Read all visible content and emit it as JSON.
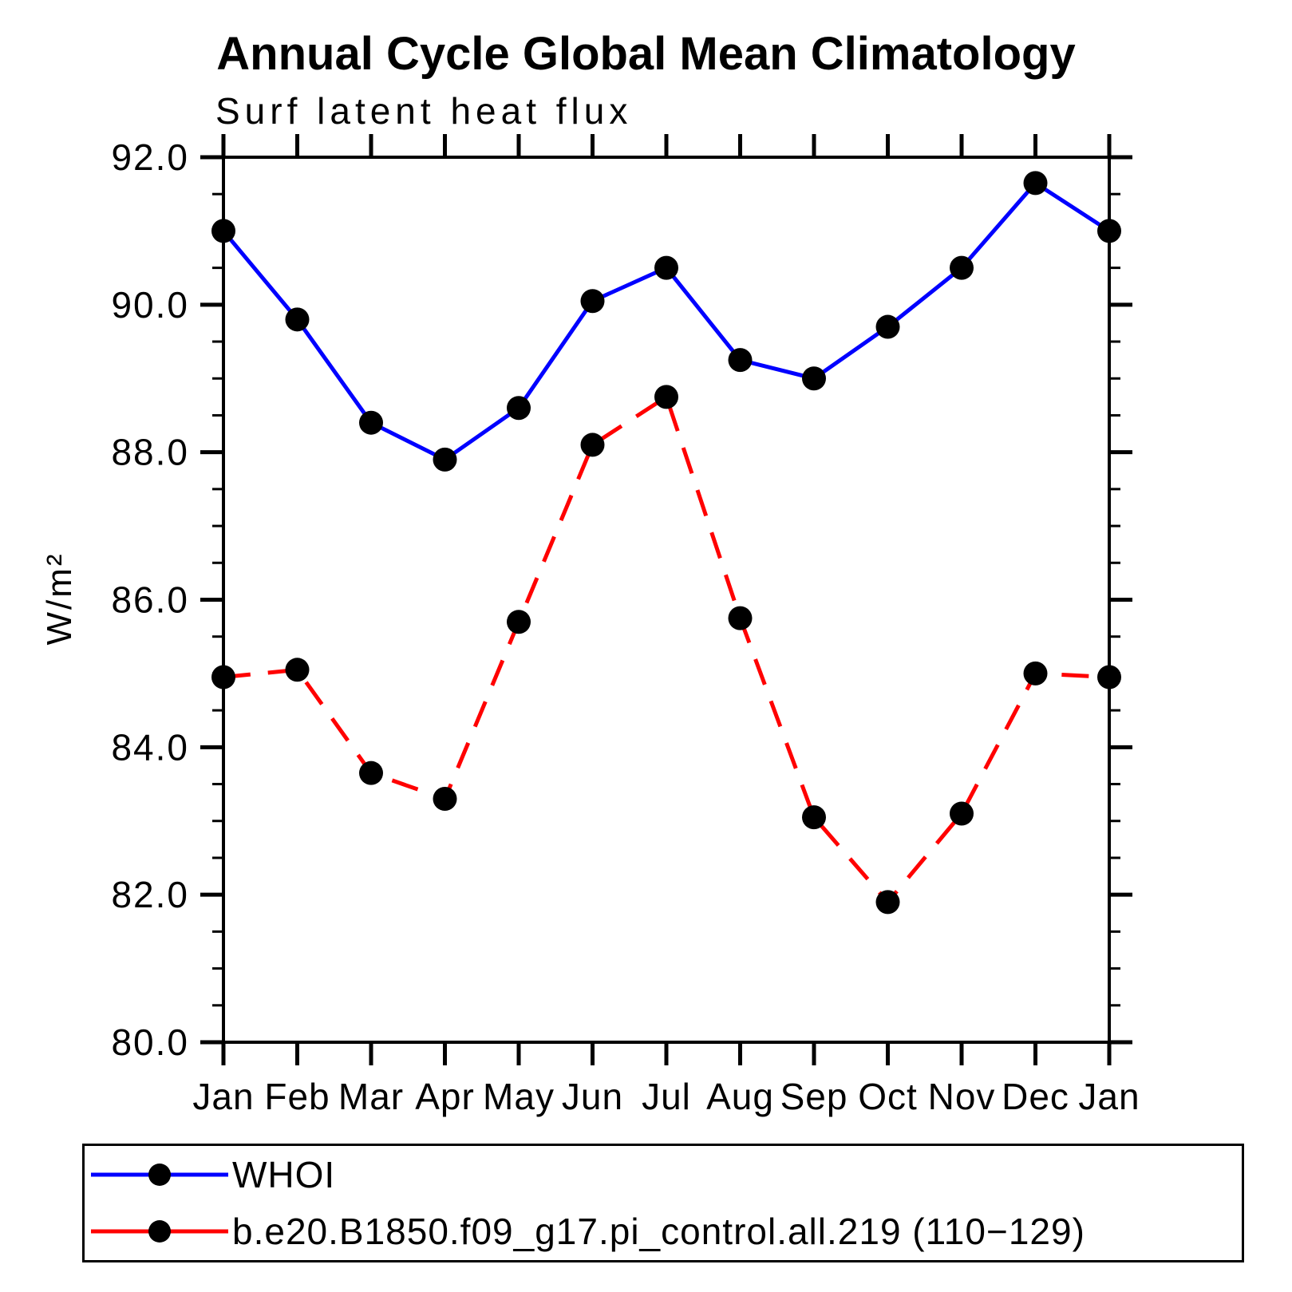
{
  "page": {
    "background": "#ffffff"
  },
  "chart_data": {
    "type": "line",
    "title": "Annual Cycle Global Mean Climatology",
    "subtitle": "Surf latent heat flux",
    "ylabel": "W/m²",
    "categories": [
      "Jan",
      "Feb",
      "Mar",
      "Apr",
      "May",
      "Jun",
      "Jul",
      "Aug",
      "Sep",
      "Oct",
      "Nov",
      "Dec",
      "Jan"
    ],
    "ylim": [
      80.0,
      92.0
    ],
    "ytick_major_interval": 2.0,
    "ytick_minor_interval": 0.5,
    "ytick_labels": [
      "80.0",
      "82.0",
      "84.0",
      "86.0",
      "88.0",
      "90.0",
      "92.0"
    ],
    "grid": false,
    "legend_position": "bottom",
    "axis_color": "#000000",
    "marker_color": "#000000",
    "series": [
      {
        "name": "WHOI",
        "color": "#0000ff",
        "line_style": "solid",
        "values": [
          91.0,
          89.8,
          88.4,
          87.9,
          88.6,
          90.05,
          90.5,
          89.25,
          89.0,
          89.7,
          90.5,
          91.65,
          91.0
        ]
      },
      {
        "name": "b.e20.B1850.f09_g17.pi_control.all.219 (110−129)",
        "color": "#ff0000",
        "line_style": "dashed",
        "values": [
          84.95,
          85.05,
          83.65,
          83.3,
          85.7,
          88.1,
          88.75,
          85.75,
          83.05,
          81.9,
          83.1,
          85.0,
          84.95
        ]
      }
    ]
  }
}
